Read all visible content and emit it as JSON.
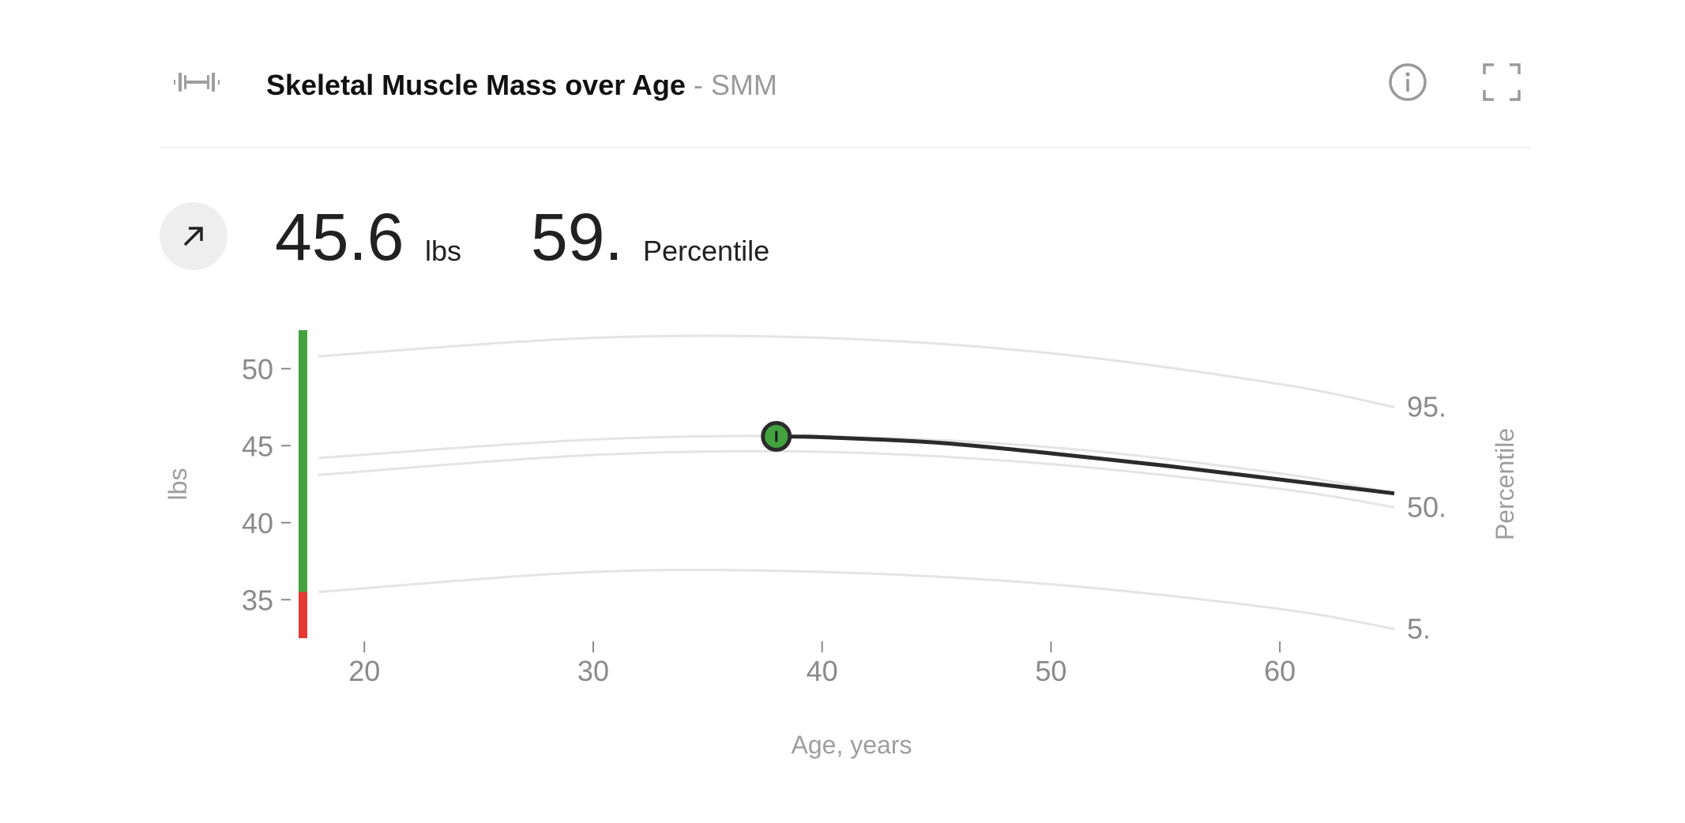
{
  "header": {
    "title": "Skeletal Muscle Mass over Age",
    "separator": " - ",
    "abbreviation": "SMM"
  },
  "icons": {
    "metric": "dumbbell-icon",
    "info": "info-icon",
    "fullscreen": "fullscreen-icon",
    "trend": "arrow-up-right-icon"
  },
  "stats": {
    "value": "45.6",
    "value_unit": "lbs",
    "percentile": "59.",
    "percentile_label": "Percentile"
  },
  "colors": {
    "healthy": "#43a23f",
    "low": "#e53935",
    "line": "#2b2b2b",
    "reference": "#e4e4e4",
    "marker": "#43a23f"
  },
  "chart_data": {
    "type": "line",
    "xlabel": "Age, years",
    "ylabel": "lbs",
    "y2label": "Percentile",
    "xlim": [
      17.3,
      65
    ],
    "ylim": [
      32.5,
      52.5
    ],
    "xticks": [
      20,
      30,
      40,
      50,
      60
    ],
    "yticks": [
      35,
      40,
      45,
      50
    ],
    "reference_curves": [
      {
        "label": "95.",
        "points": [
          [
            18,
            50.8
          ],
          [
            30,
            52.0
          ],
          [
            40,
            52.0
          ],
          [
            50,
            51.0
          ],
          [
            60,
            49.0
          ],
          [
            65,
            47.5
          ]
        ]
      },
      {
        "label": "",
        "points": [
          [
            18,
            44.2
          ],
          [
            30,
            45.4
          ],
          [
            40,
            45.6
          ],
          [
            50,
            44.9
          ],
          [
            60,
            43.2
          ],
          [
            65,
            41.9
          ]
        ]
      },
      {
        "label": "50.",
        "points": [
          [
            18,
            43.1
          ],
          [
            30,
            44.4
          ],
          [
            40,
            44.6
          ],
          [
            50,
            43.8
          ],
          [
            60,
            42.2
          ],
          [
            65,
            41.0
          ]
        ]
      },
      {
        "label": "5.",
        "points": [
          [
            18,
            35.5
          ],
          [
            30,
            36.8
          ],
          [
            40,
            36.8
          ],
          [
            50,
            36.0
          ],
          [
            60,
            34.4
          ],
          [
            65,
            33.1
          ]
        ]
      }
    ],
    "series": [
      {
        "points": [
          [
            38,
            45.6
          ],
          [
            40,
            45.55
          ],
          [
            45,
            45.2
          ],
          [
            50,
            44.5
          ],
          [
            55,
            43.7
          ],
          [
            60,
            42.8
          ],
          [
            65,
            41.9
          ]
        ]
      }
    ],
    "current_point": {
      "x": 38,
      "y": 45.6
    },
    "range_bar": [
      {
        "from": 32.5,
        "to": 35.5,
        "status": "low"
      },
      {
        "from": 35.5,
        "to": 52.5,
        "status": "healthy"
      }
    ]
  }
}
